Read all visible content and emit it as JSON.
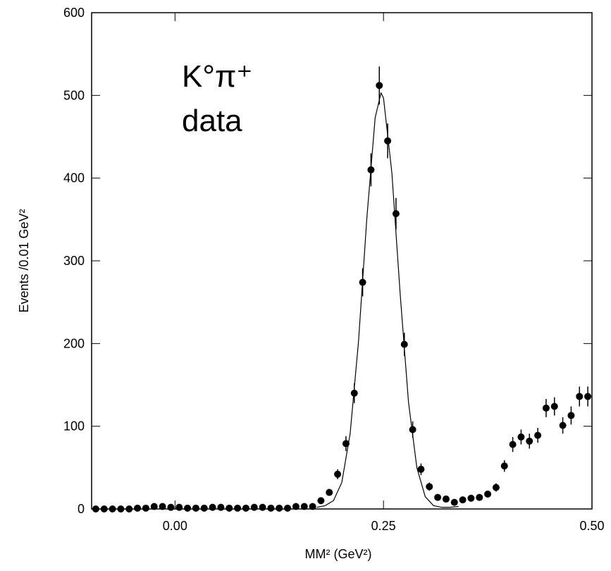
{
  "chart_data": {
    "type": "scatter",
    "annotation": [
      "K°π⁺",
      "data"
    ],
    "annotation_color": "#1a1aff",
    "xlabel": "MM² (GeV²)",
    "ylabel": "Events /0.01 GeV²",
    "xlim": [
      -0.1,
      0.5
    ],
    "ylim": [
      0,
      600
    ],
    "xticks": [
      {
        "value": 0,
        "label": "0.00"
      },
      {
        "value": 0.25,
        "label": "0.25"
      },
      {
        "value": 0.5,
        "label": "0.50"
      }
    ],
    "yticks": [
      0,
      100,
      200,
      300,
      400,
      500,
      600
    ],
    "series": [
      {
        "type": "scatter",
        "color": "#000000",
        "x": [
          -0.095,
          -0.085,
          -0.075,
          -0.065,
          -0.055,
          -0.045,
          -0.035,
          -0.025,
          -0.015,
          -0.005,
          0.005,
          0.015,
          0.025,
          0.035,
          0.045,
          0.055,
          0.065,
          0.075,
          0.085,
          0.095,
          0.105,
          0.115,
          0.125,
          0.135,
          0.145,
          0.155,
          0.165,
          0.175,
          0.185,
          0.195,
          0.205,
          0.215,
          0.225,
          0.235,
          0.245,
          0.255,
          0.265,
          0.275,
          0.285,
          0.295,
          0.305,
          0.315,
          0.325,
          0.335,
          0.345,
          0.355,
          0.365,
          0.375,
          0.385,
          0.395,
          0.405,
          0.415,
          0.425,
          0.435,
          0.445,
          0.455,
          0.465,
          0.475,
          0.485,
          0.495
        ],
        "values": [
          0,
          0,
          0,
          0,
          0,
          1,
          1,
          3,
          3,
          2,
          2,
          1,
          1,
          1,
          2,
          2,
          1,
          1,
          1,
          2,
          2,
          1,
          1,
          1,
          3,
          3,
          3,
          10,
          20,
          42,
          79,
          140,
          274,
          410,
          512,
          445,
          357,
          199,
          96,
          48,
          27,
          14,
          12,
          8,
          11,
          13,
          14,
          18,
          26,
          52,
          78,
          87,
          82,
          89,
          122,
          124,
          101,
          113,
          136,
          136
        ],
        "errors": [
          1,
          1,
          1,
          1,
          1,
          1,
          1,
          2,
          2,
          1,
          1,
          1,
          1,
          1,
          1,
          1,
          1,
          1,
          1,
          1,
          1,
          1,
          1,
          1,
          2,
          2,
          2,
          3,
          4,
          6,
          9,
          12,
          17,
          20,
          23,
          21,
          19,
          14,
          10,
          7,
          5,
          4,
          3,
          3,
          3,
          4,
          4,
          4,
          5,
          7,
          9,
          9,
          9,
          9,
          11,
          11,
          10,
          11,
          12,
          12
        ]
      },
      {
        "type": "line",
        "color": "#000000",
        "x": [
          0.17,
          0.18,
          0.19,
          0.2,
          0.21,
          0.22,
          0.23,
          0.24,
          0.247,
          0.25,
          0.26,
          0.27,
          0.28,
          0.29,
          0.3,
          0.31,
          0.32,
          0.33,
          0.34
        ],
        "values": [
          2,
          4,
          10,
          32,
          91,
          202,
          351,
          473,
          503,
          497,
          407,
          260,
          129,
          50,
          15,
          4,
          2,
          2,
          3
        ]
      }
    ]
  }
}
